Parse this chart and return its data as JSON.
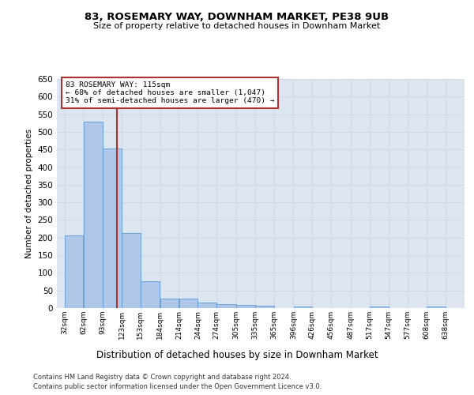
{
  "title_line1": "83, ROSEMARY WAY, DOWNHAM MARKET, PE38 9UB",
  "title_line2": "Size of property relative to detached houses in Downham Market",
  "xlabel": "Distribution of detached houses by size in Downham Market",
  "ylabel": "Number of detached properties",
  "footnote1": "Contains HM Land Registry data © Crown copyright and database right 2024.",
  "footnote2": "Contains public sector information licensed under the Open Government Licence v3.0.",
  "bar_left_edges": [
    32,
    62,
    93,
    123,
    153,
    184,
    214,
    244,
    274,
    305,
    335,
    365,
    396,
    426,
    456,
    487,
    517,
    547,
    577,
    608
  ],
  "bar_widths": [
    30,
    31,
    30,
    30,
    31,
    30,
    30,
    30,
    31,
    30,
    30,
    31,
    30,
    30,
    31,
    30,
    30,
    30,
    31,
    30
  ],
  "bar_heights": [
    207,
    530,
    452,
    212,
    76,
    26,
    26,
    15,
    11,
    10,
    7,
    0,
    5,
    0,
    0,
    0,
    4,
    0,
    0,
    5
  ],
  "bar_color": "#aec6e8",
  "bar_edge_color": "#5b9bd5",
  "grid_color": "#d0d8e8",
  "bg_color": "#dde6f0",
  "ref_line_x": 115,
  "ref_line_color": "#b03030",
  "annotation_text_line1": "83 ROSEMARY WAY: 115sqm",
  "annotation_text_line2": "← 68% of detached houses are smaller (1,047)",
  "annotation_text_line3": "31% of semi-detached houses are larger (470) →",
  "annotation_box_color": "#b03030",
  "ylim": [
    0,
    650
  ],
  "yticks": [
    0,
    50,
    100,
    150,
    200,
    250,
    300,
    350,
    400,
    450,
    500,
    550,
    600,
    650
  ],
  "xtick_labels": [
    "32sqm",
    "62sqm",
    "93sqm",
    "123sqm",
    "153sqm",
    "184sqm",
    "214sqm",
    "244sqm",
    "274sqm",
    "305sqm",
    "335sqm",
    "365sqm",
    "396sqm",
    "426sqm",
    "456sqm",
    "487sqm",
    "517sqm",
    "547sqm",
    "577sqm",
    "608sqm",
    "638sqm"
  ]
}
